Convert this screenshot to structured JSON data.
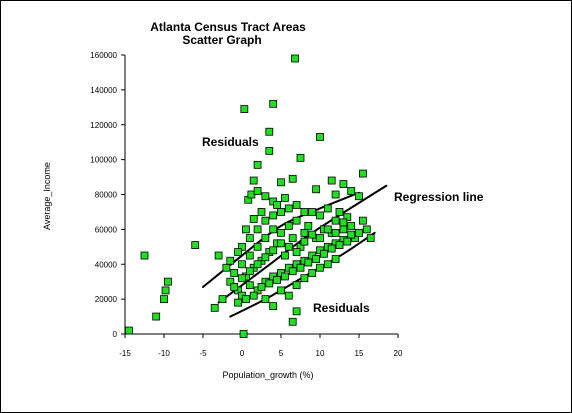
{
  "chart_data": {
    "type": "scatter",
    "title": "Atlanta  Census Tract Areas",
    "subtitle": "Scatter Graph",
    "xlabel": "Population_growth (%)",
    "ylabel": "Average_Income",
    "xlim": [
      -15,
      20
    ],
    "ylim": [
      0,
      160000
    ],
    "x_ticks": [
      -15,
      -10,
      -5,
      0,
      5,
      10,
      15,
      20
    ],
    "y_ticks": [
      0,
      20000,
      40000,
      60000,
      80000,
      100000,
      120000,
      140000,
      160000
    ],
    "x_tick_labels": [
      "-15",
      "-10",
      "-5",
      "0",
      "5",
      "10",
      "15",
      "20"
    ],
    "y_tick_labels": [
      "0",
      "20000",
      "40000",
      "60000",
      "80000",
      "100000",
      "120000",
      "140000",
      "160000"
    ],
    "grid": false,
    "point_color": "#22dd22",
    "annotations": [
      "Residuals",
      "Regression line",
      "Residuals"
    ],
    "series": [
      {
        "points": [
          [
            -14.5,
            2000
          ],
          [
            -12.5,
            45000
          ],
          [
            -11,
            10000
          ],
          [
            -10,
            20000
          ],
          [
            -9.8,
            25000
          ],
          [
            -9.5,
            30000
          ],
          [
            -6,
            51000
          ],
          [
            6.8,
            158000
          ],
          [
            0.3,
            129000
          ],
          [
            4,
            132000
          ],
          [
            3.5,
            116000
          ],
          [
            10,
            113000
          ],
          [
            3.5,
            105000
          ],
          [
            7.5,
            101000
          ],
          [
            2,
            97000
          ],
          [
            15.5,
            92000
          ],
          [
            0.2,
            0
          ],
          [
            6.5,
            7000
          ],
          [
            7,
            13000
          ],
          [
            1.5,
            88000
          ],
          [
            5,
            87000
          ],
          [
            11.5,
            88000
          ],
          [
            6.5,
            89000
          ],
          [
            0.8,
            77000
          ],
          [
            1.2,
            80000
          ],
          [
            2,
            82000
          ],
          [
            3,
            79000
          ],
          [
            4,
            76000
          ],
          [
            5.5,
            78000
          ],
          [
            9.5,
            83000
          ],
          [
            12,
            80000
          ],
          [
            13,
            86000
          ],
          [
            14,
            82000
          ],
          [
            15,
            79000
          ],
          [
            -3,
            45000
          ],
          [
            -2.5,
            20000
          ],
          [
            -3.5,
            15000
          ],
          [
            -1.5,
            30000
          ],
          [
            -1,
            35000
          ],
          [
            -0.5,
            25000
          ],
          [
            0,
            40000
          ],
          [
            0.5,
            33000
          ],
          [
            1,
            45000
          ],
          [
            1.5,
            38000
          ],
          [
            2,
            50000
          ],
          [
            2.5,
            42000
          ],
          [
            3,
            55000
          ],
          [
            3.5,
            47000
          ],
          [
            4,
            60000
          ],
          [
            4.5,
            52000
          ],
          [
            5,
            58000
          ],
          [
            5.5,
            45000
          ],
          [
            6,
            62000
          ],
          [
            6.5,
            55000
          ],
          [
            7,
            65000
          ],
          [
            7.5,
            50000
          ],
          [
            8,
            58000
          ],
          [
            8.5,
            62000
          ],
          [
            9,
            70000
          ],
          [
            9.5,
            55000
          ],
          [
            10,
            68000
          ],
          [
            10.5,
            60000
          ],
          [
            11,
            72000
          ],
          [
            11.5,
            58000
          ],
          [
            12,
            65000
          ],
          [
            12.5,
            70000
          ],
          [
            13,
            60000
          ],
          [
            13.5,
            67000
          ],
          [
            14,
            62000
          ],
          [
            14.5,
            55000
          ],
          [
            15,
            58000
          ],
          [
            15.5,
            65000
          ],
          [
            16,
            60000
          ],
          [
            16.5,
            55000
          ],
          [
            0,
            22000
          ],
          [
            1,
            28000
          ],
          [
            2,
            25000
          ],
          [
            3,
            30000
          ],
          [
            4,
            33000
          ],
          [
            5,
            35000
          ],
          [
            6,
            38000
          ],
          [
            7,
            40000
          ],
          [
            8,
            42000
          ],
          [
            9,
            45000
          ],
          [
            10,
            48000
          ],
          [
            11,
            50000
          ],
          [
            12,
            52000
          ],
          [
            13,
            54000
          ],
          [
            14,
            57000
          ],
          [
            -0.5,
            18000
          ],
          [
            0.5,
            20000
          ],
          [
            1.5,
            22000
          ],
          [
            2.5,
            27000
          ],
          [
            3.5,
            29000
          ],
          [
            4.5,
            31000
          ],
          [
            5.5,
            33000
          ],
          [
            6.5,
            36000
          ],
          [
            7.5,
            38000
          ],
          [
            8.5,
            41000
          ],
          [
            9.5,
            43000
          ],
          [
            10.5,
            46000
          ],
          [
            11.5,
            49000
          ],
          [
            12.5,
            51000
          ],
          [
            13.5,
            53000
          ],
          [
            -1,
            27000
          ],
          [
            0,
            32000
          ],
          [
            1,
            36000
          ],
          [
            2,
            40000
          ],
          [
            3,
            44000
          ],
          [
            4,
            48000
          ],
          [
            5,
            52000
          ],
          [
            6,
            50000
          ],
          [
            7,
            47000
          ],
          [
            8,
            53000
          ],
          [
            9,
            57000
          ],
          [
            10,
            55000
          ],
          [
            11,
            60000
          ],
          [
            12,
            58000
          ],
          [
            13,
            64000
          ],
          [
            1,
            55000
          ],
          [
            2,
            60000
          ],
          [
            3,
            65000
          ],
          [
            4,
            68000
          ],
          [
            5,
            70000
          ],
          [
            6,
            72000
          ],
          [
            7,
            74000
          ],
          [
            8,
            70000
          ],
          [
            3,
            20000
          ],
          [
            4,
            16000
          ],
          [
            5,
            25000
          ],
          [
            6,
            22000
          ],
          [
            7,
            28000
          ],
          [
            8,
            32000
          ],
          [
            9,
            35000
          ],
          [
            10,
            38000
          ],
          [
            11,
            40000
          ],
          [
            12,
            43000
          ],
          [
            -2,
            38000
          ],
          [
            -1.5,
            42000
          ],
          [
            0.5,
            60000
          ],
          [
            1.5,
            66000
          ],
          [
            2.5,
            70000
          ],
          [
            4.5,
            74000
          ],
          [
            0,
            50000
          ],
          [
            -0.5,
            47000
          ]
        ]
      }
    ],
    "lines": [
      {
        "label": "Regression line",
        "points": [
          [
            -3,
            18000
          ],
          [
            3,
            38000
          ],
          [
            9,
            58000
          ],
          [
            18.5,
            85000
          ]
        ]
      },
      {
        "label": "Residuals",
        "points": [
          [
            -5,
            27000
          ],
          [
            0,
            45000
          ],
          [
            5,
            62000
          ],
          [
            10,
            72000
          ],
          [
            15,
            81000
          ]
        ]
      },
      {
        "label": "Residuals",
        "points": [
          [
            -1.5,
            10000
          ],
          [
            3,
            20000
          ],
          [
            8,
            33000
          ],
          [
            13,
            46000
          ],
          [
            17,
            58000
          ]
        ]
      }
    ]
  }
}
